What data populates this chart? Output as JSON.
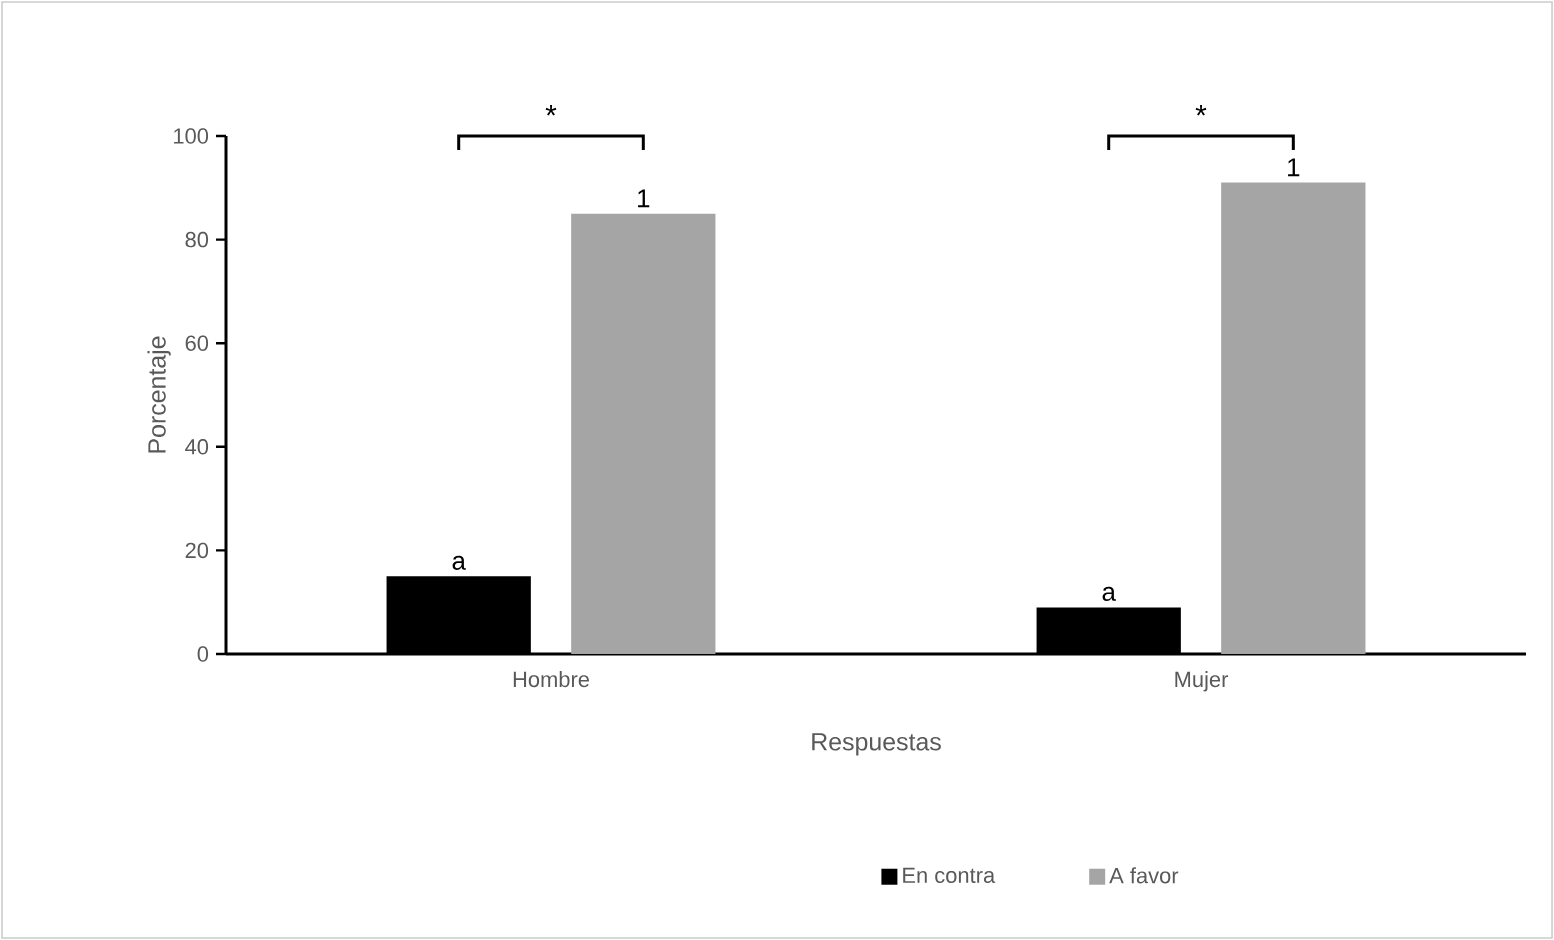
{
  "chart_data": {
    "type": "bar",
    "xlabel": "Respuestas",
    "ylabel": "Porcentaje",
    "categories": [
      "Hombre",
      "Mujer"
    ],
    "series": [
      {
        "name": "En contra",
        "color": "#000000",
        "values": [
          15,
          9
        ]
      },
      {
        "name": "A favor",
        "color": "#a5a5a5",
        "values": [
          85,
          91
        ]
      }
    ],
    "ylim": [
      0,
      100
    ],
    "yticks": [
      0,
      20,
      40,
      60,
      80,
      100
    ],
    "grid": false,
    "legend": "bottom",
    "annotations": [
      "a",
      "1",
      "a",
      "1",
      "*",
      "*"
    ]
  }
}
